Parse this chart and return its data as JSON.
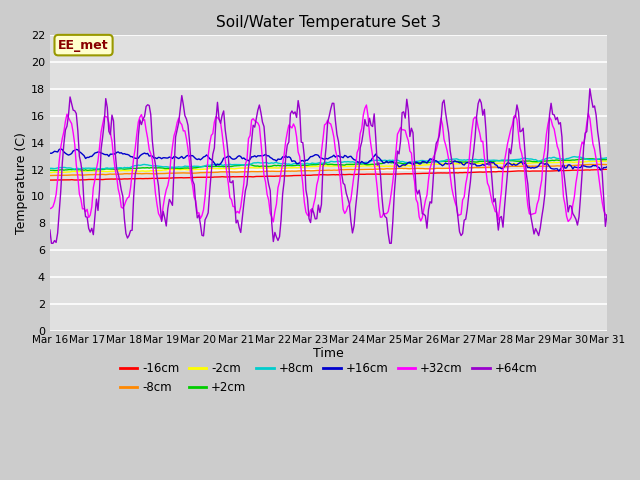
{
  "title": "Soil/Water Temperature Set 3",
  "xlabel": "Time",
  "ylabel": "Temperature (C)",
  "ylim": [
    0,
    22
  ],
  "yticks": [
    0,
    2,
    4,
    6,
    8,
    10,
    12,
    14,
    16,
    18,
    20,
    22
  ],
  "annotation_text": "EE_met",
  "annotation_bg": "#ffffcc",
  "annotation_border": "#999900",
  "series": [
    {
      "label": "-16cm",
      "color": "#ff0000"
    },
    {
      "label": "-8cm",
      "color": "#ff8800"
    },
    {
      "label": "-2cm",
      "color": "#ffff00"
    },
    {
      "label": "+2cm",
      "color": "#00cc00"
    },
    {
      "label": "+8cm",
      "color": "#00cccc"
    },
    {
      "label": "+16cm",
      "color": "#0000cc"
    },
    {
      "label": "+32cm",
      "color": "#ff00ff"
    },
    {
      "label": "+64cm",
      "color": "#9900cc"
    }
  ],
  "x_start": 0,
  "x_end": 15,
  "n_points": 360,
  "xtick_labels": [
    "Mar 16",
    "Mar 17",
    "Mar 18",
    "Mar 19",
    "Mar 20",
    "Mar 21",
    "Mar 22",
    "Mar 23",
    "Mar 24",
    "Mar 25",
    "Mar 26",
    "Mar 27",
    "Mar 28",
    "Mar 29",
    "Mar 30",
    "Mar 31"
  ],
  "xtick_positions": [
    0,
    1.0,
    2.0,
    3.0,
    4.0,
    5.0,
    6.0,
    7.0,
    8.0,
    9.0,
    10.0,
    11.0,
    12.0,
    13.0,
    14.0,
    15.0
  ]
}
